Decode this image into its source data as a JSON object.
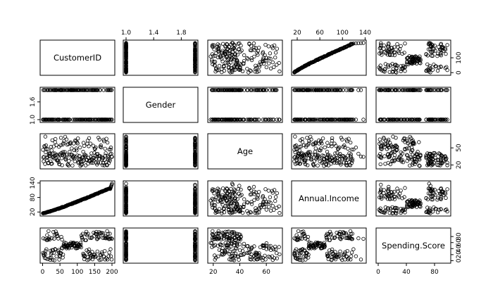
{
  "chart_data": {
    "type": "scatter",
    "variables": [
      "CustomerID",
      "Gender",
      "Age",
      "Annual.Income",
      "Spending.Score"
    ],
    "ranges": {
      "CustomerID": [
        1,
        200
      ],
      "Gender": [
        1,
        2
      ],
      "Age": [
        18,
        70
      ],
      "Annual.Income": [
        15,
        137
      ],
      "Spending.Score": [
        1,
        99
      ]
    },
    "ticks": {
      "CustomerID": [
        "0",
        "50",
        "100",
        "150",
        "200"
      ],
      "Gender": [
        "1.0",
        "1.4",
        "1.8"
      ],
      "Age": [
        "20",
        "40",
        "60"
      ],
      "Annual.Income": [
        "20",
        "60",
        "100",
        "140"
      ],
      "Spending.Score": [
        "0",
        "40",
        "80"
      ]
    },
    "right_ticks": {
      "CustomerID": [
        "0",
        "100"
      ],
      "Age": [
        "20",
        "50"
      ],
      "Spending.Score": [
        "0",
        "20",
        "40",
        "60",
        "80"
      ]
    },
    "left_ticks": {
      "Gender": [
        "1.0",
        "1.6"
      ],
      "Annual.Income": [
        "20",
        "80",
        "140"
      ]
    },
    "grid": false,
    "legend": "none"
  }
}
